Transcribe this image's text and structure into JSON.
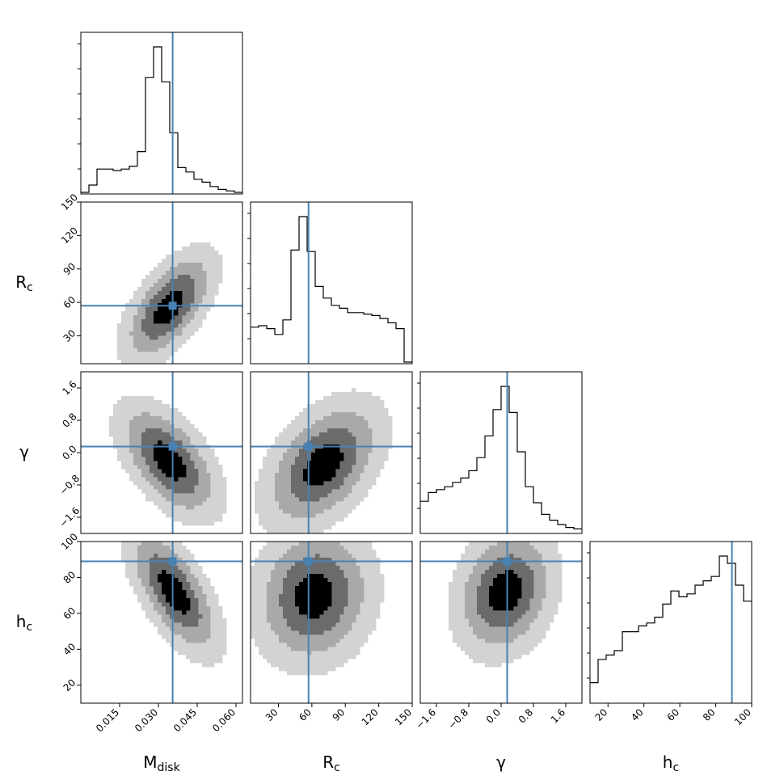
{
  "chart_data": {
    "type": "corner",
    "truth_color": "#4682b4",
    "contour_colors": [
      "#d3d3d3",
      "#a9a9a9",
      "#6b6b6b",
      "#000000"
    ],
    "params": [
      {
        "key": "mdisk",
        "label_main": "M",
        "label_sub": "disk",
        "lim": [
          0.0,
          0.0625
        ],
        "ticks": [
          0.015,
          0.03,
          0.045,
          0.06
        ],
        "tick_labels": [
          "0.015",
          "0.030",
          "0.045",
          "0.060"
        ],
        "truth": 0.0355
      },
      {
        "key": "rc",
        "label_main": "R",
        "label_sub": "c",
        "lim": [
          5,
          150
        ],
        "ticks": [
          30,
          60,
          90,
          120,
          150
        ],
        "tick_labels": [
          "30",
          "60",
          "90",
          "120",
          "150"
        ],
        "truth": 57
      },
      {
        "key": "gamma",
        "label_main": "γ",
        "label_sub": "",
        "lim": [
          -2.0,
          2.0
        ],
        "ticks": [
          -1.6,
          -0.8,
          0.0,
          0.8,
          1.6
        ],
        "tick_labels": [
          "−1.6",
          "−0.8",
          "0.0",
          "0.8",
          "1.6"
        ],
        "truth": 0.15
      },
      {
        "key": "hc",
        "label_main": "h",
        "label_sub": "c",
        "lim": [
          10,
          100
        ],
        "ticks": [
          20,
          40,
          60,
          80,
          100
        ],
        "tick_labels": [
          "20",
          "40",
          "60",
          "80",
          "100"
        ],
        "truth": 89
      }
    ],
    "histograms": [
      {
        "param": "mdisk",
        "bins": 20,
        "range": [
          0.0,
          0.0625
        ],
        "counts": [
          0.0,
          0.05,
          0.16,
          0.16,
          0.15,
          0.16,
          0.18,
          0.28,
          0.79,
          1.0,
          0.76,
          0.41,
          0.17,
          0.14,
          0.09,
          0.07,
          0.04,
          0.02,
          0.01,
          0.0
        ]
      },
      {
        "param": "rc",
        "bins": 20,
        "range": [
          5,
          150
        ],
        "counts": [
          0.24,
          0.25,
          0.23,
          0.19,
          0.29,
          0.77,
          1.0,
          0.76,
          0.52,
          0.44,
          0.39,
          0.37,
          0.34,
          0.34,
          0.33,
          0.32,
          0.3,
          0.27,
          0.23,
          0.0
        ]
      },
      {
        "param": "gamma",
        "bins": 20,
        "range": [
          -2.0,
          2.0
        ],
        "counts": [
          0.21,
          0.27,
          0.29,
          0.31,
          0.34,
          0.37,
          0.42,
          0.51,
          0.66,
          0.84,
          1.0,
          0.82,
          0.55,
          0.31,
          0.2,
          0.12,
          0.08,
          0.05,
          0.03,
          0.02
        ]
      },
      {
        "param": "hc",
        "bins": 20,
        "range": [
          10,
          100
        ],
        "counts": [
          0.13,
          0.29,
          0.32,
          0.35,
          0.48,
          0.48,
          0.52,
          0.54,
          0.58,
          0.67,
          0.76,
          0.72,
          0.74,
          0.8,
          0.83,
          0.86,
          1.0,
          0.95,
          0.8,
          0.69
        ]
      }
    ],
    "joints": [
      {
        "x": "mdisk",
        "y": "rc",
        "corr": 0.6,
        "mx": 0.034,
        "my": 56,
        "sx": 0.01,
        "sy": 28
      },
      {
        "x": "mdisk",
        "y": "gamma",
        "corr": -0.55,
        "mx": 0.034,
        "my": -0.2,
        "sx": 0.011,
        "sy": 0.8
      },
      {
        "x": "mdisk",
        "y": "hc",
        "corr": -0.65,
        "mx": 0.036,
        "my": 72,
        "sx": 0.01,
        "sy": 20
      },
      {
        "x": "rc",
        "y": "gamma",
        "corr": 0.45,
        "mx": 70,
        "my": -0.3,
        "sx": 30,
        "sy": 0.9
      },
      {
        "x": "rc",
        "y": "hc",
        "corr": 0.1,
        "mx": 62,
        "my": 70,
        "sx": 30,
        "sy": 22
      },
      {
        "x": "gamma",
        "y": "hc",
        "corr": 0.2,
        "mx": 0.1,
        "my": 72,
        "sx": 0.7,
        "sy": 20
      }
    ]
  }
}
